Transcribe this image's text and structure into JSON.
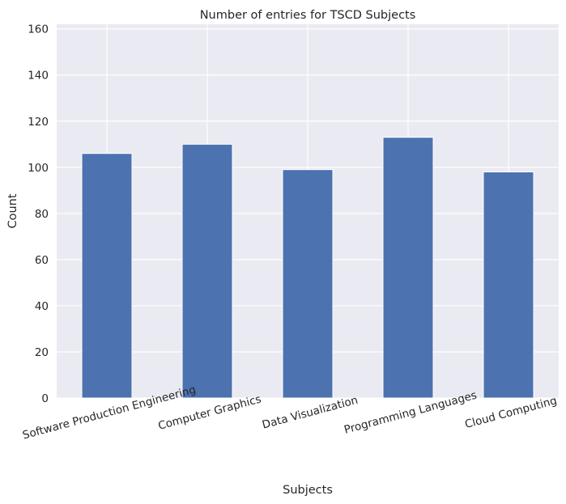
{
  "chart_data": {
    "type": "bar",
    "title": "Number of entries for TSCD Subjects",
    "xlabel": "Subjects",
    "ylabel": "Count",
    "categories": [
      "Software Production Engineering",
      "Computer Graphics",
      "Data Visualization",
      "Programming Languages",
      "Cloud Computing"
    ],
    "values": [
      106,
      110,
      99,
      113,
      98
    ],
    "ylim": [
      0,
      162
    ],
    "yticks": [
      0,
      20,
      40,
      60,
      80,
      100,
      120,
      140,
      160
    ],
    "grid": true,
    "legend": "none",
    "colors": {
      "bar": "#4c72b0",
      "plot_bg": "#eaeaf2",
      "grid": "#ffffff",
      "text": "#262626"
    }
  }
}
